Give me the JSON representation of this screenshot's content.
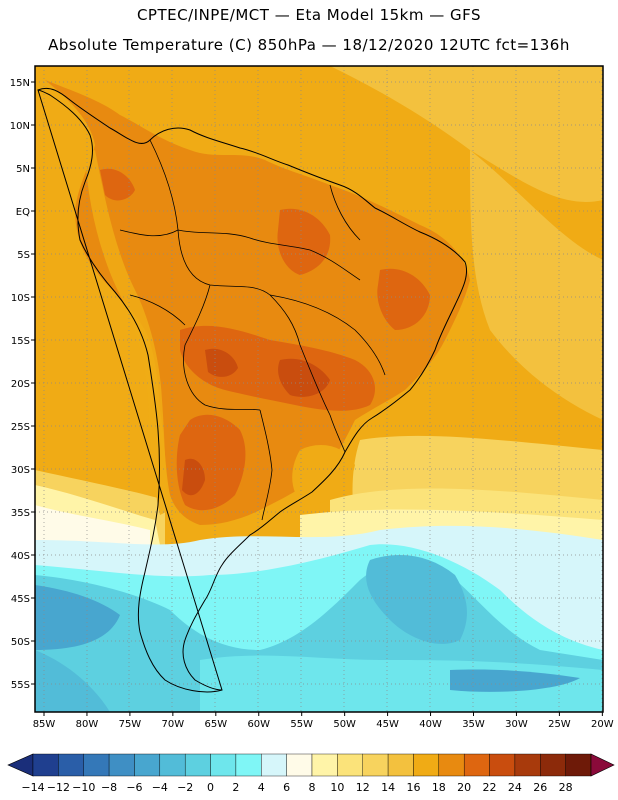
{
  "header": {
    "line1": "CPTEC/INPE/MCT —  Eta Model 15km — GFS",
    "line2": "Absolute Temperature (C) 850hPa — 18/12/2020 12UTC fct=136h"
  },
  "axes": {
    "lat_labels": [
      "15N",
      "10N",
      "5N",
      "EQ",
      "5S",
      "10S",
      "15S",
      "20S",
      "25S",
      "30S",
      "35S",
      "40S",
      "45S",
      "50S",
      "55S"
    ],
    "lon_labels": [
      "85W",
      "80W",
      "75W",
      "70W",
      "65W",
      "60W",
      "55W",
      "50W",
      "45W",
      "40W",
      "35W",
      "30W",
      "25W",
      "20W"
    ]
  },
  "colorbar": {
    "labels": [
      "-14",
      "-12",
      "-10",
      "-8",
      "-6",
      "-4",
      "-2",
      "0",
      "2",
      "4",
      "6",
      "8",
      "10",
      "12",
      "14",
      "16",
      "18",
      "20",
      "22",
      "24",
      "26",
      "28"
    ],
    "colors": [
      "#1f3f8f",
      "#2a5ea8",
      "#3478b8",
      "#3f8fc4",
      "#48a6cf",
      "#52bcd8",
      "#5dd0e0",
      "#6ee6ec",
      "#7ff6f6",
      "#d6f6fa",
      "#fffbe8",
      "#fff4a8",
      "#fbe37a",
      "#f7d35e",
      "#f3c13e",
      "#f0ab15",
      "#e88a10",
      "#de6610",
      "#c94d0e",
      "#a83a0c",
      "#8c2a0a",
      "#6e1a08"
    ],
    "under_color": "#1a2e7a",
    "over_color": "#8a0a3a"
  }
}
